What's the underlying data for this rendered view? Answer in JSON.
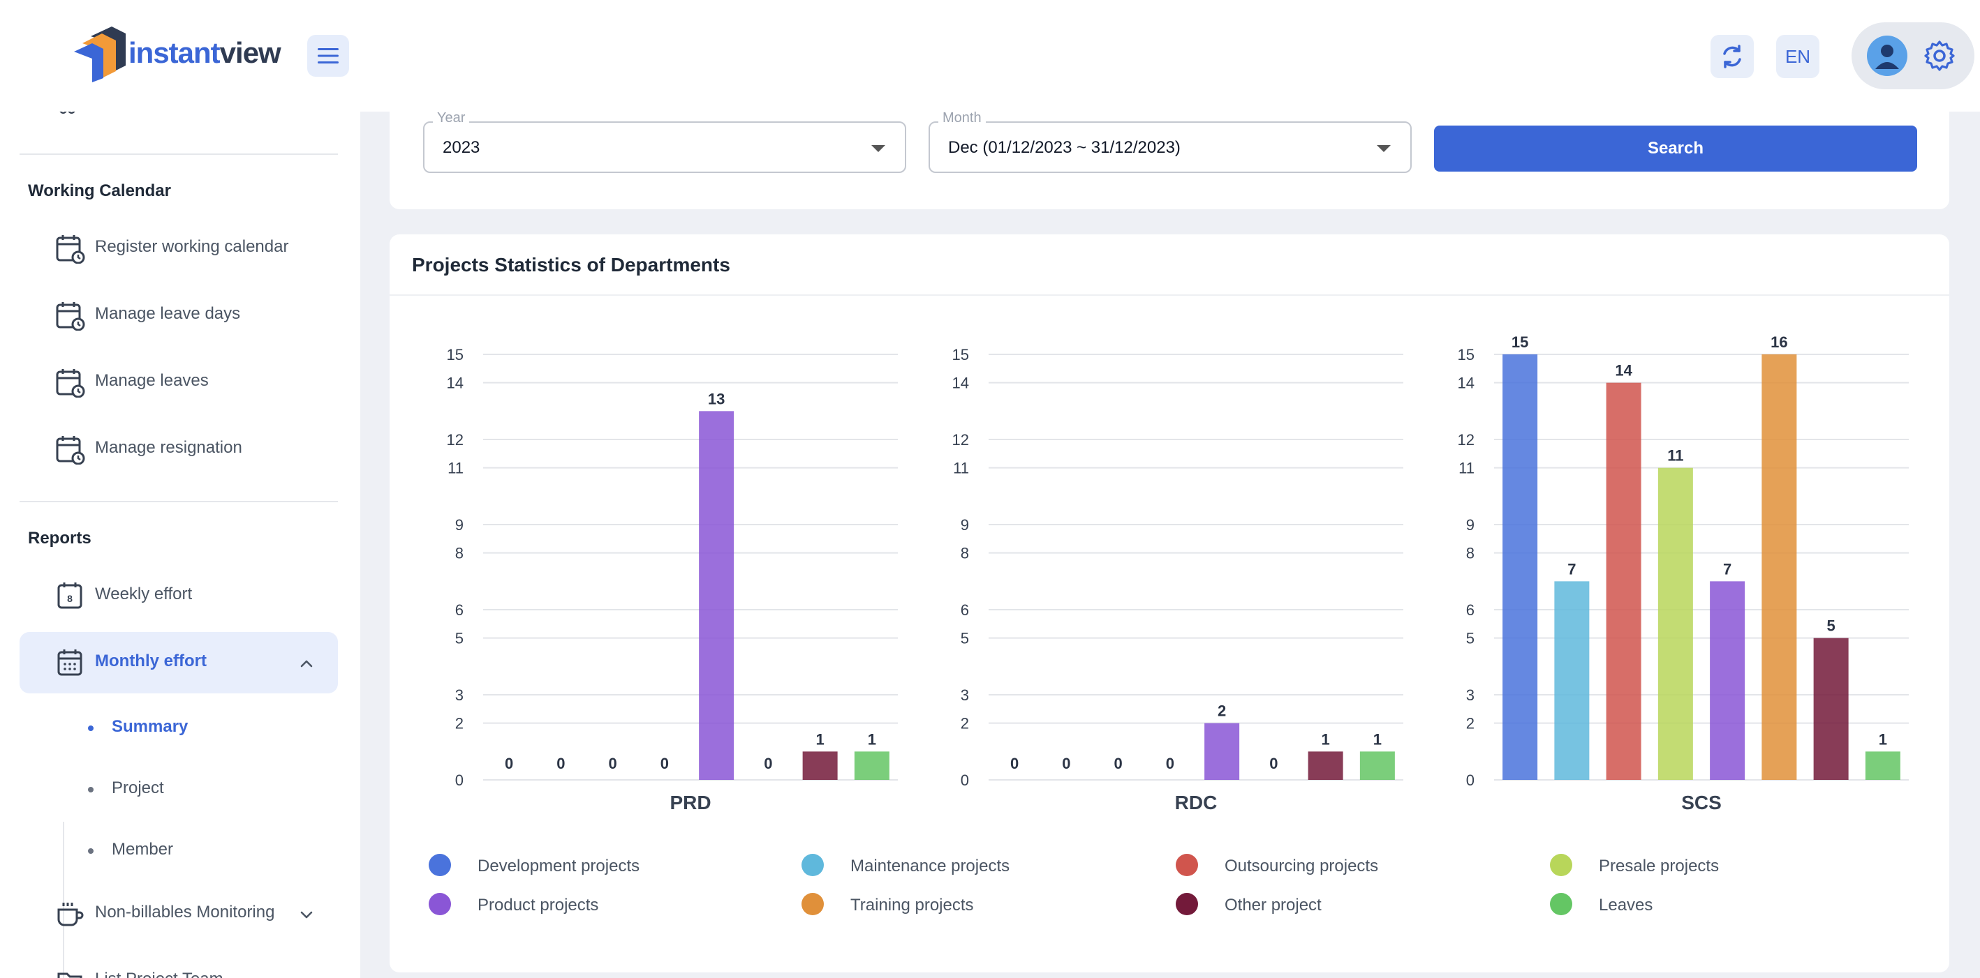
{
  "app": {
    "logo_text_a": "instant",
    "logo_text_b": "view",
    "lang": "EN"
  },
  "sidebar": {
    "working_calendar": {
      "title": "Working Calendar",
      "items": [
        {
          "label": "Register working calendar",
          "icon": "calendar-icon"
        },
        {
          "label": "Manage leave days",
          "icon": "calendar-clock-icon"
        },
        {
          "label": "Manage leaves",
          "icon": "calendar-clock-icon"
        },
        {
          "label": "Manage resignation",
          "icon": "calendar-clock-icon"
        }
      ]
    },
    "reports": {
      "title": "Reports",
      "weekly": "Weekly effort",
      "monthly": "Monthly effort",
      "sub": [
        "Summary",
        "Project",
        "Member"
      ],
      "non_billables": "Non-billables Monitoring",
      "cut_item": "List Project Team"
    }
  },
  "filters": {
    "year_label": "Year",
    "year_value": "2023",
    "month_label": "Month",
    "month_value": "Dec (01/12/2023 ~ 31/12/2023)",
    "search_label": "Search"
  },
  "stats": {
    "title": "Projects Statistics of Departments"
  },
  "colors": {
    "accent": "#3b66d6",
    "series": [
      "#4a73dc",
      "#5fb8dc",
      "#d0554d",
      "#b8d65a",
      "#8a56d6",
      "#e0903a",
      "#731a3a",
      "#64c664"
    ]
  },
  "chart_data": [
    {
      "type": "bar",
      "title": "PRD",
      "yticks": [
        0,
        2,
        3,
        5,
        6,
        8,
        9,
        11,
        12,
        14,
        15
      ],
      "ylim": [
        0,
        15
      ],
      "categories": [
        "Development projects",
        "Maintenance projects",
        "Outsourcing projects",
        "Presale projects",
        "Product projects",
        "Training projects",
        "Other project",
        "Leaves"
      ],
      "values": [
        0,
        0,
        0,
        0,
        13,
        0,
        1,
        1
      ]
    },
    {
      "type": "bar",
      "title": "RDC",
      "yticks": [
        0,
        2,
        3,
        5,
        6,
        8,
        9,
        11,
        12,
        14,
        15
      ],
      "ylim": [
        0,
        15
      ],
      "categories": [
        "Development projects",
        "Maintenance projects",
        "Outsourcing projects",
        "Presale projects",
        "Product projects",
        "Training projects",
        "Other project",
        "Leaves"
      ],
      "values": [
        0,
        0,
        0,
        0,
        2,
        0,
        1,
        1
      ]
    },
    {
      "type": "bar",
      "title": "SCS",
      "yticks": [
        0,
        2,
        3,
        5,
        6,
        8,
        9,
        11,
        12,
        14,
        15
      ],
      "ylim": [
        0,
        15
      ],
      "categories": [
        "Development projects",
        "Maintenance projects",
        "Outsourcing projects",
        "Presale projects",
        "Product projects",
        "Training projects",
        "Other project",
        "Leaves"
      ],
      "values": [
        15,
        7,
        14,
        11,
        7,
        16,
        5,
        1
      ]
    }
  ],
  "legend": [
    {
      "label": "Development projects",
      "color": "#4a73dc"
    },
    {
      "label": "Maintenance projects",
      "color": "#5fb8dc"
    },
    {
      "label": "Outsourcing projects",
      "color": "#d0554d"
    },
    {
      "label": "Presale projects",
      "color": "#b8d65a"
    },
    {
      "label": "Product projects",
      "color": "#8a56d6"
    },
    {
      "label": "Training projects",
      "color": "#e0903a"
    },
    {
      "label": "Other project",
      "color": "#731a3a"
    },
    {
      "label": "Leaves",
      "color": "#64c664"
    }
  ]
}
